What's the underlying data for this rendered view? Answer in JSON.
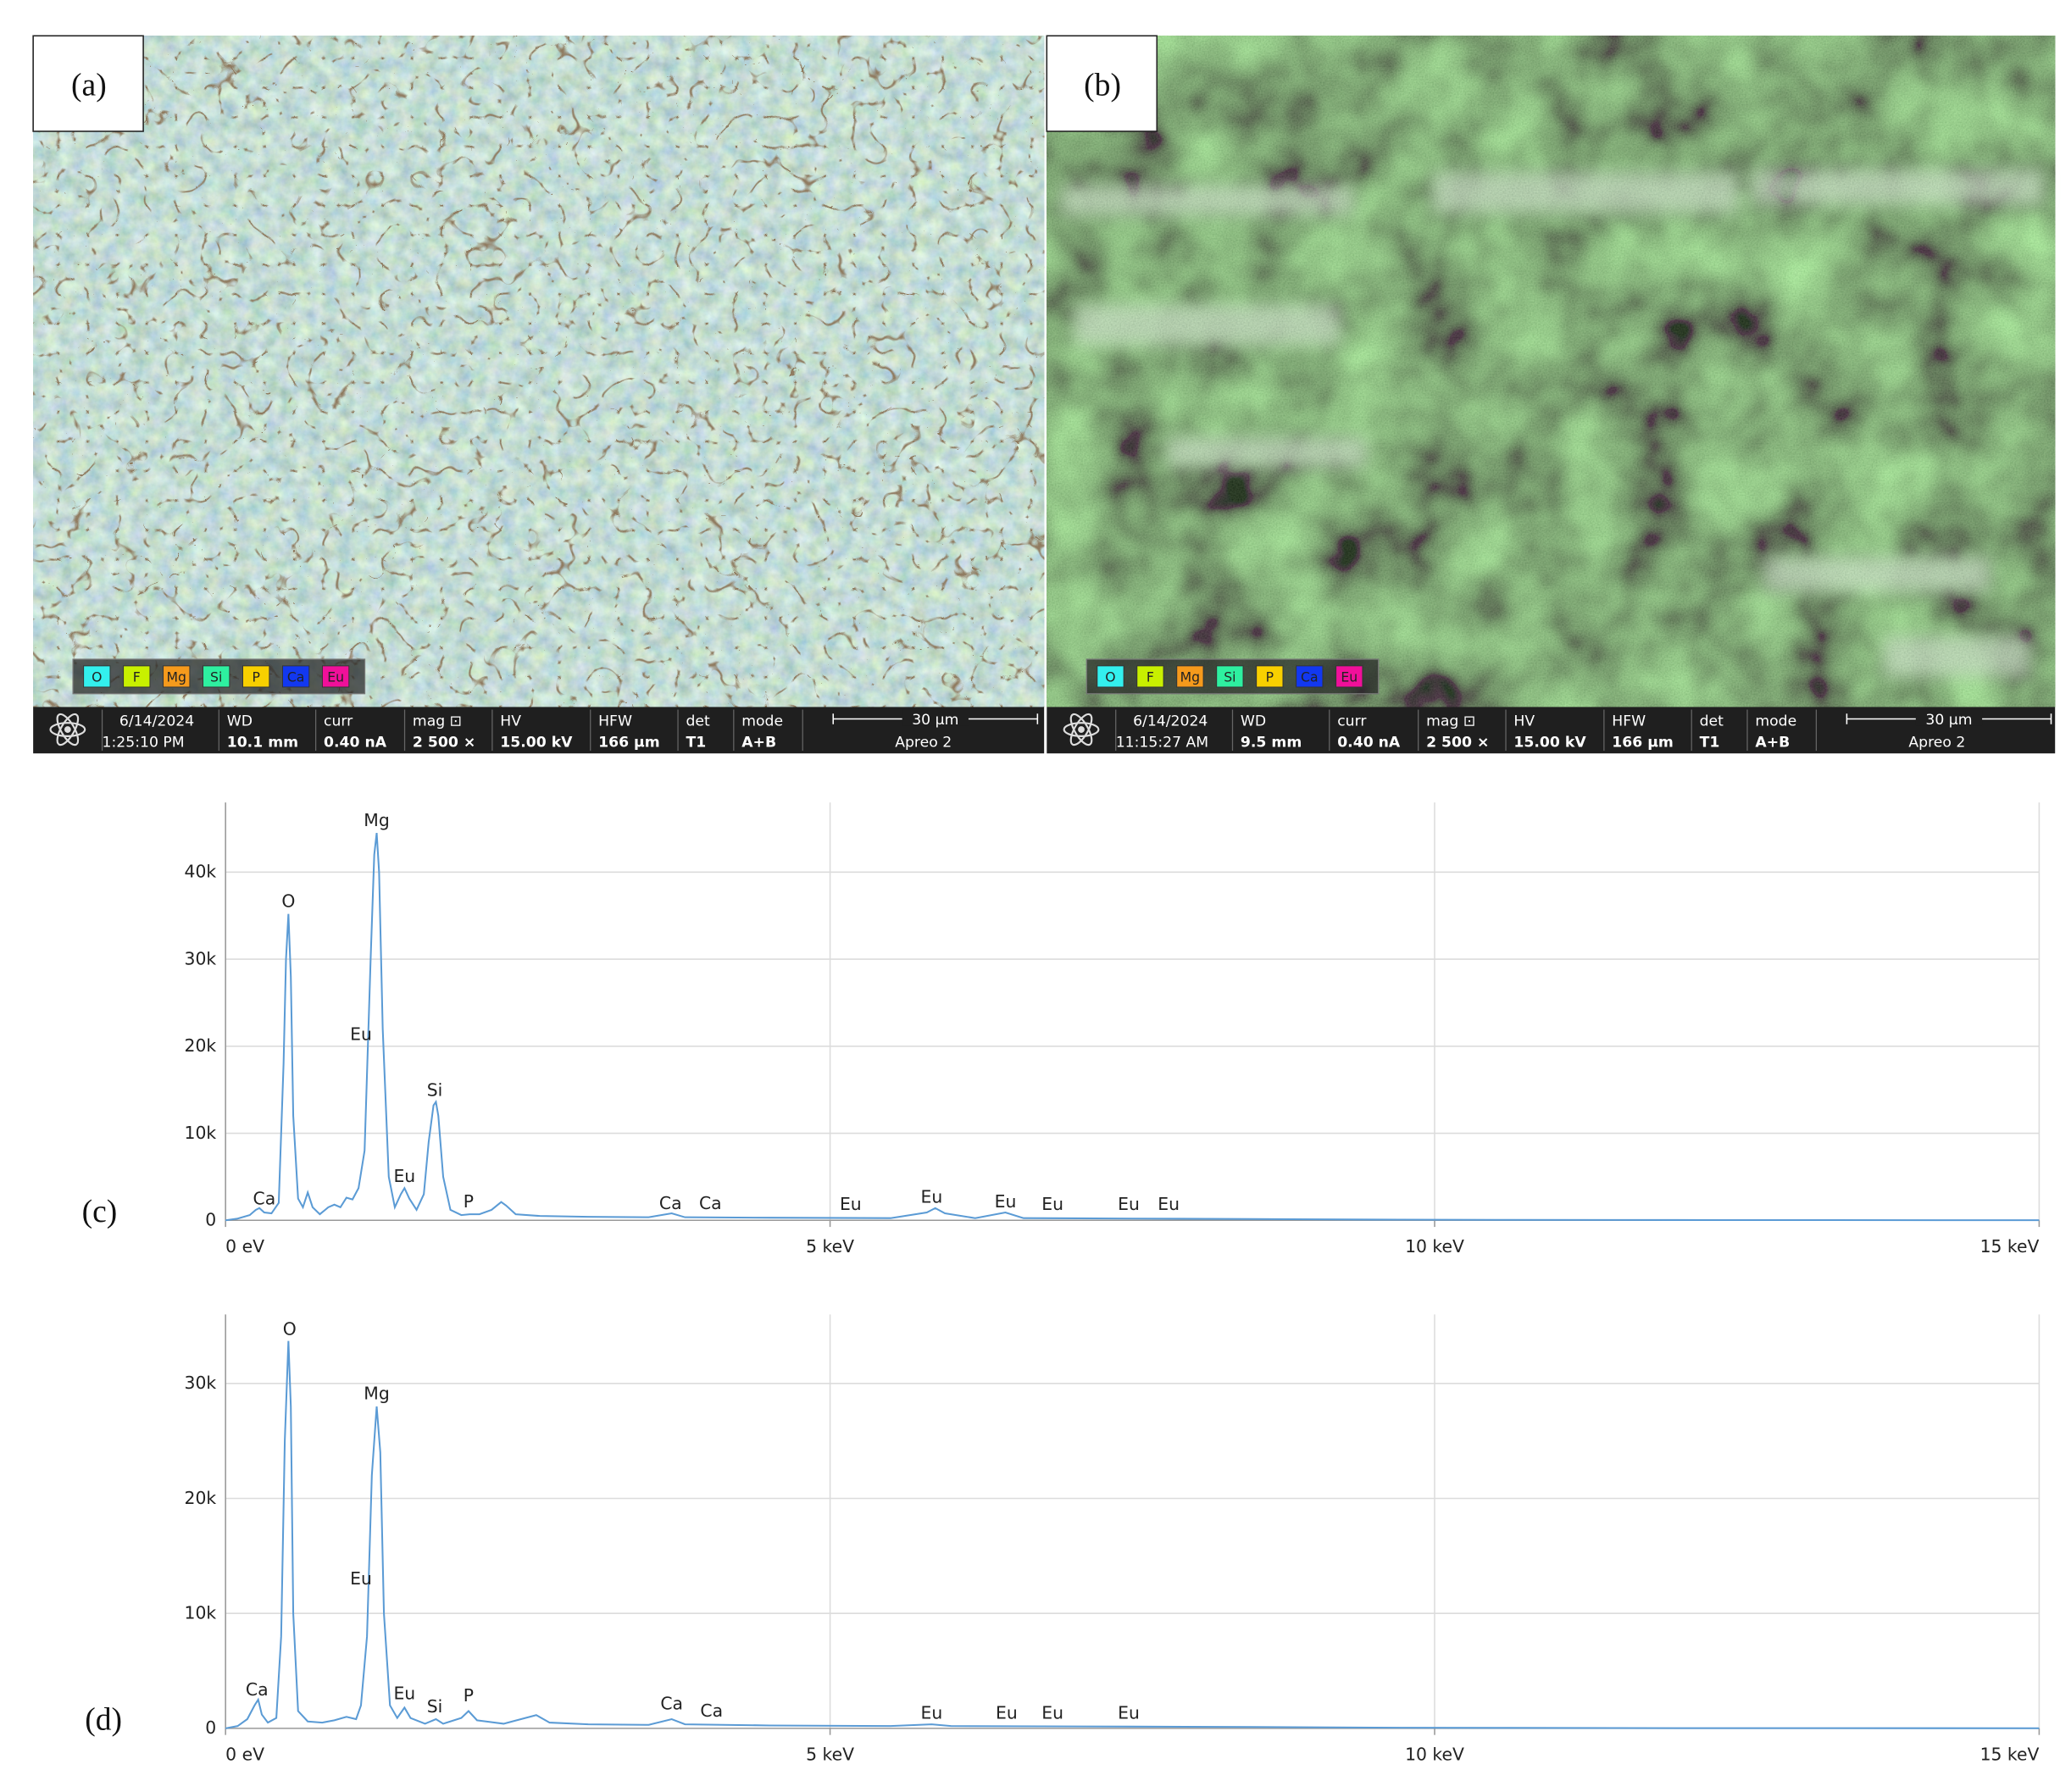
{
  "panels": [
    {
      "label": "(a)",
      "legend": [
        {
          "text": "O",
          "color": "#33f0ee"
        },
        {
          "text": "F",
          "color": "#c8f000"
        },
        {
          "text": "Mg",
          "color": "#f59a1c"
        },
        {
          "text": "Si",
          "color": "#2ef0a0"
        },
        {
          "text": "P",
          "color": "#f8d000"
        },
        {
          "text": "Ca",
          "color": "#1238f0"
        },
        {
          "text": "Eu",
          "color": "#f0109a"
        }
      ],
      "fields": [
        {
          "name": "6/14/2024",
          "value": "1:25:10 PM"
        },
        {
          "name": "WD",
          "value": "10.1 mm"
        },
        {
          "name": "curr",
          "value": "0.40 nA"
        },
        {
          "name": "mag ⊡",
          "value": "2 500 ×"
        },
        {
          "name": "HV",
          "value": "15.00 kV"
        },
        {
          "name": "HFW",
          "value": "166 µm"
        },
        {
          "name": "det",
          "value": "T1"
        },
        {
          "name": "mode",
          "value": "A+B"
        }
      ],
      "scale": "30 µm",
      "instrument": "Apreo 2"
    },
    {
      "label": "(b)",
      "legend": [
        {
          "text": "O",
          "color": "#33f0ee"
        },
        {
          "text": "F",
          "color": "#c8f000"
        },
        {
          "text": "Mg",
          "color": "#f59a1c"
        },
        {
          "text": "Si",
          "color": "#2ef0a0"
        },
        {
          "text": "P",
          "color": "#f8d000"
        },
        {
          "text": "Ca",
          "color": "#1238f0"
        },
        {
          "text": "Eu",
          "color": "#f0109a"
        }
      ],
      "fields": [
        {
          "name": "6/14/2024",
          "value": "11:15:27 AM"
        },
        {
          "name": "WD",
          "value": "9.5 mm"
        },
        {
          "name": "curr",
          "value": "0.40 nA"
        },
        {
          "name": "mag ⊡",
          "value": "2 500 ×"
        },
        {
          "name": "HV",
          "value": "15.00 kV"
        },
        {
          "name": "HFW",
          "value": "166 µm"
        },
        {
          "name": "det",
          "value": "T1"
        },
        {
          "name": "mode",
          "value": "A+B"
        }
      ],
      "scale": "30 µm",
      "instrument": "Apreo 2"
    }
  ],
  "chart_data": [
    {
      "type": "line",
      "label": "(c)",
      "color": "#5b9bd5",
      "grid": true,
      "x": [
        0,
        0.1,
        0.2,
        0.25,
        0.28,
        0.32,
        0.38,
        0.44,
        0.48,
        0.5,
        0.52,
        0.54,
        0.56,
        0.6,
        0.64,
        0.68,
        0.72,
        0.78,
        0.85,
        0.9,
        0.95,
        1.0,
        1.05,
        1.1,
        1.15,
        1.2,
        1.23,
        1.25,
        1.27,
        1.3,
        1.35,
        1.4,
        1.45,
        1.48,
        1.52,
        1.58,
        1.64,
        1.68,
        1.72,
        1.74,
        1.76,
        1.8,
        1.86,
        1.95,
        2.02,
        2.1,
        2.2,
        2.28,
        2.32,
        2.4,
        2.6,
        3.0,
        3.5,
        3.69,
        3.8,
        4.5,
        5.5,
        5.8,
        5.87,
        5.95,
        6.2,
        6.45,
        6.6,
        7.5,
        8.5,
        9.5,
        10.5,
        12,
        15
      ],
      "values": [
        0,
        200,
        600,
        1200,
        1400,
        900,
        800,
        2000,
        18000,
        30000,
        35200,
        28000,
        12000,
        2500,
        1500,
        3200,
        1500,
        700,
        1500,
        1800,
        1500,
        2600,
        2400,
        3700,
        8000,
        30000,
        42000,
        44500,
        40000,
        22000,
        5000,
        1500,
        3000,
        3700,
        2500,
        1200,
        3000,
        9000,
        13200,
        13600,
        12000,
        5000,
        1200,
        600,
        700,
        700,
        1200,
        2100,
        1700,
        700,
        500,
        400,
        350,
        800,
        350,
        300,
        250,
        900,
        1400,
        800,
        250,
        900,
        250,
        200,
        150,
        80,
        50,
        30,
        10
      ],
      "xlim": [
        0,
        15
      ],
      "xticks": [
        {
          "value": 0,
          "label": "0 eV"
        },
        {
          "value": 5,
          "label": "5 keV"
        },
        {
          "value": 10,
          "label": "10 keV"
        },
        {
          "value": 15,
          "label": "15 keV"
        }
      ],
      "ylim": [
        0,
        48000
      ],
      "yticks": [
        0,
        {
          "value": 10000,
          "label": "10k"
        },
        {
          "value": 20000,
          "label": "20k"
        },
        {
          "value": 30000,
          "label": "30k"
        },
        {
          "value": 40000,
          "label": "40k"
        }
      ],
      "annotations": [
        {
          "text": "Ca",
          "x": 0.32,
          "y": 1500
        },
        {
          "text": "O",
          "x": 0.52,
          "y": 35700
        },
        {
          "text": "Mg",
          "x": 1.25,
          "y": 45000
        },
        {
          "text": "Eu",
          "x": 1.12,
          "y": 20400
        },
        {
          "text": "Si",
          "x": 1.73,
          "y": 14000
        },
        {
          "text": "Eu",
          "x": 1.48,
          "y": 4100
        },
        {
          "text": "P",
          "x": 2.01,
          "y": 1200
        },
        {
          "text": "Ca",
          "x": 3.68,
          "y": 1000
        },
        {
          "text": "Ca",
          "x": 4.01,
          "y": 1000
        },
        {
          "text": "Eu",
          "x": 5.17,
          "y": 900
        },
        {
          "text": "Eu",
          "x": 5.84,
          "y": 1700
        },
        {
          "text": "Eu",
          "x": 6.45,
          "y": 1200
        },
        {
          "text": "Eu",
          "x": 6.84,
          "y": 900
        },
        {
          "text": "Eu",
          "x": 7.47,
          "y": 900
        },
        {
          "text": "Eu",
          "x": 7.8,
          "y": 900
        }
      ]
    },
    {
      "type": "line",
      "label": "(d)",
      "color": "#5b9bd5",
      "grid": true,
      "x": [
        0,
        0.1,
        0.18,
        0.24,
        0.27,
        0.3,
        0.35,
        0.42,
        0.46,
        0.49,
        0.52,
        0.54,
        0.56,
        0.6,
        0.68,
        0.8,
        0.9,
        1.0,
        1.08,
        1.12,
        1.17,
        1.21,
        1.25,
        1.28,
        1.31,
        1.36,
        1.42,
        1.48,
        1.53,
        1.65,
        1.74,
        1.8,
        1.95,
        2.01,
        2.08,
        2.3,
        2.57,
        2.68,
        3.0,
        3.5,
        3.69,
        3.8,
        4.5,
        5.5,
        5.84,
        6.0,
        7.5,
        8.5,
        9.5,
        10.5,
        12,
        15
      ],
      "values": [
        0,
        200,
        800,
        2000,
        2500,
        1200,
        500,
        900,
        8000,
        25000,
        33700,
        28000,
        10000,
        1500,
        600,
        500,
        700,
        1000,
        800,
        2000,
        8000,
        22000,
        28000,
        24000,
        10000,
        2000,
        900,
        1800,
        900,
        400,
        800,
        400,
        900,
        1500,
        700,
        400,
        1150,
        500,
        350,
        300,
        800,
        350,
        250,
        200,
        350,
        200,
        150,
        120,
        60,
        40,
        20,
        10
      ],
      "xlim": [
        0,
        15
      ],
      "xticks": [
        {
          "value": 0,
          "label": "0 eV"
        },
        {
          "value": 5,
          "label": "5 keV"
        },
        {
          "value": 10,
          "label": "10 keV"
        },
        {
          "value": 15,
          "label": "15 keV"
        }
      ],
      "ylim": [
        0,
        36000
      ],
      "yticks": [
        0,
        {
          "value": 10000,
          "label": "10k"
        },
        {
          "value": 20000,
          "label": "20k"
        },
        {
          "value": 30000,
          "label": "30k"
        }
      ],
      "annotations": [
        {
          "text": "Ca",
          "x": 0.26,
          "y": 2650
        },
        {
          "text": "O",
          "x": 0.53,
          "y": 34000
        },
        {
          "text": "Mg",
          "x": 1.25,
          "y": 28400
        },
        {
          "text": "Eu",
          "x": 1.12,
          "y": 12300
        },
        {
          "text": "Eu",
          "x": 1.48,
          "y": 2300
        },
        {
          "text": "Si",
          "x": 1.73,
          "y": 1150
        },
        {
          "text": "P",
          "x": 2.01,
          "y": 2100
        },
        {
          "text": "Ca",
          "x": 3.69,
          "y": 1400
        },
        {
          "text": "Ca",
          "x": 4.02,
          "y": 800
        },
        {
          "text": "Eu",
          "x": 5.84,
          "y": 600
        },
        {
          "text": "Eu",
          "x": 6.46,
          "y": 600
        },
        {
          "text": "Eu",
          "x": 6.84,
          "y": 600
        },
        {
          "text": "Eu",
          "x": 7.47,
          "y": 600
        }
      ]
    }
  ]
}
